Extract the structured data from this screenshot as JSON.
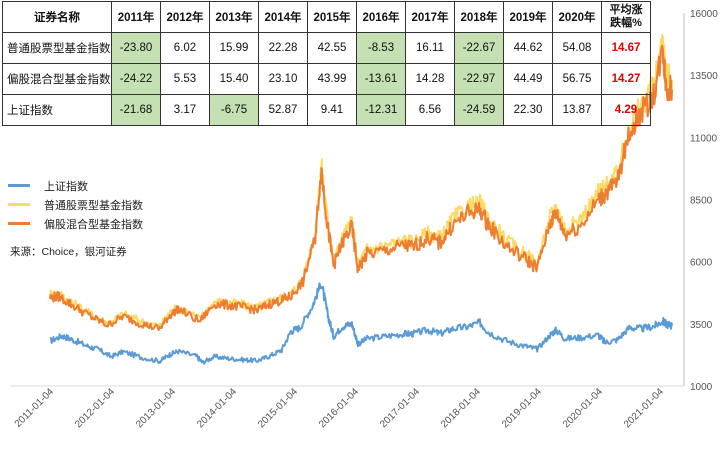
{
  "table": {
    "header": [
      "证券名称",
      "2011年",
      "2012年",
      "2013年",
      "2014年",
      "2015年",
      "2016年",
      "2017年",
      "2018年",
      "2019年",
      "2020年"
    ],
    "avg_header_line1": "平均涨",
    "avg_header_line2": "跌幅%",
    "rows": [
      {
        "name": "普通股票型基金指数",
        "values": [
          "-23.80",
          "6.02",
          "15.99",
          "22.28",
          "42.55",
          "-8.53",
          "16.11",
          "-22.67",
          "44.62",
          "54.08"
        ],
        "avg": "14.67"
      },
      {
        "name": "偏股混合型基金指数",
        "values": [
          "-24.22",
          "5.53",
          "15.40",
          "23.10",
          "43.99",
          "-13.61",
          "14.28",
          "-22.97",
          "44.49",
          "56.75"
        ],
        "avg": "14.27"
      },
      {
        "name": "上证指数",
        "values": [
          "-21.68",
          "3.17",
          "-6.75",
          "52.87",
          "9.41",
          "-12.31",
          "6.56",
          "-24.59",
          "22.30",
          "13.87"
        ],
        "avg": "4.29"
      }
    ]
  },
  "source": "来源：Choice，银河证券",
  "chart_data": {
    "type": "line",
    "yaxis": {
      "position": "right",
      "ylim": [
        1000,
        16000
      ],
      "ticks": [
        1000,
        3500,
        6000,
        8500,
        11000,
        13500,
        16000
      ]
    },
    "x_tick_labels": [
      "2011-01-04",
      "2012-01-04",
      "2013-01-04",
      "2014-01-04",
      "2015-01-04",
      "2016-01-04",
      "2017-01-04",
      "2018-01-04",
      "2019-01-04",
      "2020-01-04",
      "2021-01-04"
    ],
    "x_range": [
      2011.0,
      2021.2
    ],
    "legend_position": "left",
    "series": [
      {
        "name": "上证指数",
        "color": "#5b9bd5",
        "points": [
          [
            2011.0,
            2808
          ],
          [
            2011.2,
            3020
          ],
          [
            2011.35,
            2880
          ],
          [
            2011.6,
            2620
          ],
          [
            2011.8,
            2460
          ],
          [
            2012.0,
            2180
          ],
          [
            2012.2,
            2380
          ],
          [
            2012.5,
            2150
          ],
          [
            2012.8,
            2000
          ],
          [
            2012.95,
            2250
          ],
          [
            2013.1,
            2400
          ],
          [
            2013.4,
            2200
          ],
          [
            2013.5,
            1950
          ],
          [
            2013.7,
            2180
          ],
          [
            2013.95,
            2100
          ],
          [
            2014.2,
            2050
          ],
          [
            2014.4,
            2020
          ],
          [
            2014.6,
            2200
          ],
          [
            2014.8,
            2450
          ],
          [
            2014.95,
            3200
          ],
          [
            2015.1,
            3350
          ],
          [
            2015.3,
            4200
          ],
          [
            2015.45,
            5166
          ],
          [
            2015.55,
            3900
          ],
          [
            2015.65,
            3000
          ],
          [
            2015.8,
            3400
          ],
          [
            2015.95,
            3500
          ],
          [
            2016.05,
            2700
          ],
          [
            2016.2,
            2900
          ],
          [
            2016.5,
            3000
          ],
          [
            2016.8,
            3100
          ],
          [
            2016.95,
            3100
          ],
          [
            2017.2,
            3250
          ],
          [
            2017.4,
            3100
          ],
          [
            2017.6,
            3300
          ],
          [
            2017.85,
            3380
          ],
          [
            2018.05,
            3550
          ],
          [
            2018.2,
            3150
          ],
          [
            2018.5,
            2800
          ],
          [
            2018.8,
            2600
          ],
          [
            2018.99,
            2480
          ],
          [
            2019.2,
            3050
          ],
          [
            2019.3,
            3250
          ],
          [
            2019.45,
            2900
          ],
          [
            2019.7,
            2950
          ],
          [
            2019.99,
            3050
          ],
          [
            2020.1,
            2750
          ],
          [
            2020.3,
            2850
          ],
          [
            2020.5,
            3350
          ],
          [
            2020.7,
            3300
          ],
          [
            2020.9,
            3400
          ],
          [
            2021.05,
            3600
          ],
          [
            2021.1,
            3500
          ],
          [
            2021.2,
            3430
          ]
        ]
      },
      {
        "name": "普通股票型基金指数",
        "color": "#ffd966",
        "points": [
          [
            2011.0,
            4700
          ],
          [
            2011.15,
            4700
          ],
          [
            2011.4,
            4300
          ],
          [
            2011.7,
            3850
          ],
          [
            2011.95,
            3520
          ],
          [
            2012.2,
            3900
          ],
          [
            2012.5,
            3600
          ],
          [
            2012.8,
            3400
          ],
          [
            2012.95,
            3900
          ],
          [
            2013.1,
            4200
          ],
          [
            2013.45,
            3700
          ],
          [
            2013.7,
            4400
          ],
          [
            2013.95,
            4350
          ],
          [
            2014.2,
            4250
          ],
          [
            2014.4,
            4150
          ],
          [
            2014.6,
            4400
          ],
          [
            2014.8,
            4550
          ],
          [
            2014.95,
            4700
          ],
          [
            2015.15,
            5300
          ],
          [
            2015.35,
            7200
          ],
          [
            2015.45,
            9900
          ],
          [
            2015.55,
            7700
          ],
          [
            2015.65,
            6000
          ],
          [
            2015.8,
            7000
          ],
          [
            2015.95,
            7600
          ],
          [
            2016.05,
            5900
          ],
          [
            2016.2,
            6500
          ],
          [
            2016.5,
            6650
          ],
          [
            2016.8,
            6850
          ],
          [
            2016.95,
            6800
          ],
          [
            2017.2,
            7150
          ],
          [
            2017.4,
            6950
          ],
          [
            2017.6,
            7700
          ],
          [
            2017.85,
            8200
          ],
          [
            2018.05,
            8350
          ],
          [
            2018.2,
            7700
          ],
          [
            2018.5,
            6800
          ],
          [
            2018.8,
            6300
          ],
          [
            2018.99,
            5900
          ],
          [
            2019.2,
            7800
          ],
          [
            2019.3,
            8200
          ],
          [
            2019.45,
            7300
          ],
          [
            2019.7,
            7700
          ],
          [
            2019.99,
            8800
          ],
          [
            2020.1,
            9000
          ],
          [
            2020.3,
            9500
          ],
          [
            2020.5,
            11500
          ],
          [
            2020.7,
            12300
          ],
          [
            2020.9,
            13000
          ],
          [
            2021.05,
            15000
          ],
          [
            2021.1,
            13500
          ],
          [
            2021.2,
            13300
          ]
        ]
      },
      {
        "name": "偏股混合型基金指数",
        "color": "#ed7d31",
        "points": [
          [
            2011.0,
            4550
          ],
          [
            2011.15,
            4600
          ],
          [
            2011.4,
            4200
          ],
          [
            2011.7,
            3750
          ],
          [
            2011.95,
            3450
          ],
          [
            2012.2,
            3800
          ],
          [
            2012.5,
            3500
          ],
          [
            2012.8,
            3300
          ],
          [
            2012.95,
            3800
          ],
          [
            2013.1,
            4100
          ],
          [
            2013.45,
            3600
          ],
          [
            2013.7,
            4300
          ],
          [
            2013.95,
            4250
          ],
          [
            2014.2,
            4150
          ],
          [
            2014.4,
            4050
          ],
          [
            2014.6,
            4300
          ],
          [
            2014.8,
            4450
          ],
          [
            2014.95,
            4600
          ],
          [
            2015.15,
            5200
          ],
          [
            2015.35,
            7000
          ],
          [
            2015.45,
            9700
          ],
          [
            2015.55,
            7500
          ],
          [
            2015.65,
            5850
          ],
          [
            2015.8,
            6800
          ],
          [
            2015.95,
            7400
          ],
          [
            2016.05,
            5700
          ],
          [
            2016.2,
            6300
          ],
          [
            2016.5,
            6450
          ],
          [
            2016.8,
            6650
          ],
          [
            2016.95,
            6600
          ],
          [
            2017.2,
            6950
          ],
          [
            2017.4,
            6750
          ],
          [
            2017.6,
            7450
          ],
          [
            2017.85,
            7950
          ],
          [
            2018.05,
            8100
          ],
          [
            2018.2,
            7450
          ],
          [
            2018.5,
            6600
          ],
          [
            2018.8,
            6100
          ],
          [
            2018.99,
            5750
          ],
          [
            2019.2,
            7550
          ],
          [
            2019.3,
            7950
          ],
          [
            2019.45,
            7100
          ],
          [
            2019.7,
            7450
          ],
          [
            2019.99,
            8500
          ],
          [
            2020.1,
            8700
          ],
          [
            2020.3,
            9200
          ],
          [
            2020.5,
            11200
          ],
          [
            2020.7,
            12000
          ],
          [
            2020.9,
            12700
          ],
          [
            2021.05,
            14600
          ],
          [
            2021.1,
            13100
          ],
          [
            2021.2,
            12900
          ]
        ]
      }
    ]
  }
}
